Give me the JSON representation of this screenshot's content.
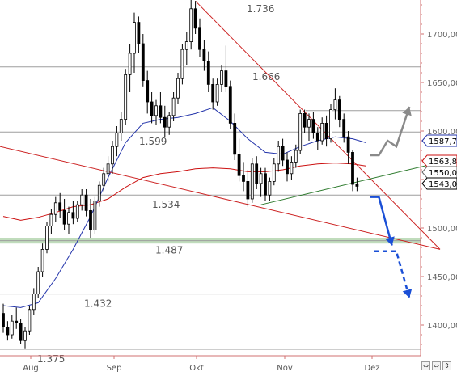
{
  "colors": {
    "background": "#ffffff",
    "grid": "#9e9e9e",
    "axis": "#d07070",
    "candle": "#000000",
    "ma_fast": "#2233aa",
    "ma_slow": "#cc1111",
    "trendline_red": "#cc2222",
    "trendline_green": "#2c7a2c",
    "support_zone": "#b9d8b5",
    "arrow_blue": "#1a4fd6",
    "arrow_gray": "#8a8a8a",
    "level_label": "#555555"
  },
  "chart_data": {
    "type": "candlestick",
    "x_ticks": [
      "Aug",
      "Sep",
      "Okt",
      "Nov",
      "Dez"
    ],
    "y_ticks": [
      "1700,00",
      "1650,00",
      "1600,00",
      "1550,00",
      "1500,00",
      "1450,00",
      "1400,00"
    ],
    "y_tick_values": [
      1700,
      1650,
      1600,
      1550,
      1500,
      1450,
      1400
    ],
    "ylim": [
      1365,
      1752
    ],
    "levels": [
      {
        "label": "1.736",
        "value": 1736
      },
      {
        "label": "1.666",
        "value": 1666
      },
      {
        "label": "1.599",
        "value": 1599
      },
      {
        "label": "1.534",
        "value": 1534
      },
      {
        "label": "1.487",
        "value": 1487
      },
      {
        "label": "1.432",
        "value": 1432
      },
      {
        "label": "1.375",
        "value": 1375
      }
    ],
    "extra_levels": [
      1621
    ],
    "price_tags": [
      {
        "label": "1587,7",
        "value": 1587.7,
        "color": "#2233aa"
      },
      {
        "label": "1563,8",
        "value": 1563.8,
        "color": "#cc1111"
      },
      {
        "label": "1550,0",
        "value": 1550,
        "color": "#666666"
      },
      {
        "label": "1543,0",
        "value": 1543,
        "color": "#000000"
      }
    ],
    "ohlc": [
      [
        1412,
        1422,
        1392,
        1398
      ],
      [
        1398,
        1404,
        1384,
        1390
      ],
      [
        1390,
        1410,
        1386,
        1404
      ],
      [
        1404,
        1418,
        1396,
        1402
      ],
      [
        1402,
        1406,
        1380,
        1384
      ],
      [
        1384,
        1398,
        1376,
        1394
      ],
      [
        1394,
        1420,
        1390,
        1416
      ],
      [
        1416,
        1438,
        1410,
        1432
      ],
      [
        1432,
        1460,
        1428,
        1455
      ],
      [
        1455,
        1484,
        1450,
        1478
      ],
      [
        1478,
        1506,
        1474,
        1502
      ],
      [
        1502,
        1520,
        1494,
        1514
      ],
      [
        1514,
        1532,
        1506,
        1526
      ],
      [
        1526,
        1536,
        1510,
        1518
      ],
      [
        1518,
        1530,
        1498,
        1504
      ],
      [
        1504,
        1522,
        1494,
        1516
      ],
      [
        1516,
        1528,
        1504,
        1510
      ],
      [
        1510,
        1528,
        1506,
        1524
      ],
      [
        1524,
        1540,
        1518,
        1534
      ],
      [
        1534,
        1540,
        1512,
        1518
      ],
      [
        1518,
        1530,
        1490,
        1498
      ],
      [
        1498,
        1532,
        1494,
        1528
      ],
      [
        1528,
        1548,
        1522,
        1544
      ],
      [
        1544,
        1562,
        1538,
        1556
      ],
      [
        1556,
        1574,
        1548,
        1566
      ],
      [
        1566,
        1590,
        1556,
        1584
      ],
      [
        1584,
        1605,
        1574,
        1598
      ],
      [
        1598,
        1620,
        1590,
        1612
      ],
      [
        1612,
        1664,
        1606,
        1658
      ],
      [
        1658,
        1690,
        1640,
        1680
      ],
      [
        1680,
        1722,
        1660,
        1712
      ],
      [
        1712,
        1718,
        1680,
        1690
      ],
      [
        1690,
        1700,
        1646,
        1652
      ],
      [
        1652,
        1662,
        1618,
        1630
      ],
      [
        1630,
        1640,
        1608,
        1616
      ],
      [
        1616,
        1632,
        1606,
        1626
      ],
      [
        1626,
        1640,
        1608,
        1614
      ],
      [
        1614,
        1626,
        1594,
        1604
      ],
      [
        1604,
        1620,
        1596,
        1616
      ],
      [
        1616,
        1640,
        1610,
        1634
      ],
      [
        1634,
        1660,
        1628,
        1654
      ],
      [
        1654,
        1690,
        1648,
        1684
      ],
      [
        1684,
        1702,
        1668,
        1692
      ],
      [
        1692,
        1736,
        1684,
        1726
      ],
      [
        1726,
        1734,
        1700,
        1706
      ],
      [
        1706,
        1716,
        1676,
        1684
      ],
      [
        1684,
        1694,
        1662,
        1672
      ],
      [
        1672,
        1682,
        1640,
        1648
      ],
      [
        1648,
        1654,
        1622,
        1630
      ],
      [
        1630,
        1654,
        1626,
        1648
      ],
      [
        1648,
        1668,
        1640,
        1662
      ],
      [
        1662,
        1688,
        1640,
        1646
      ],
      [
        1646,
        1652,
        1602,
        1608
      ],
      [
        1608,
        1618,
        1570,
        1576
      ],
      [
        1576,
        1592,
        1548,
        1554
      ],
      [
        1554,
        1568,
        1538,
        1548
      ],
      [
        1548,
        1560,
        1522,
        1530
      ],
      [
        1530,
        1572,
        1526,
        1566
      ],
      [
        1566,
        1574,
        1540,
        1546
      ],
      [
        1546,
        1562,
        1532,
        1556
      ],
      [
        1556,
        1562,
        1528,
        1534
      ],
      [
        1534,
        1552,
        1528,
        1548
      ],
      [
        1548,
        1572,
        1544,
        1566
      ],
      [
        1566,
        1590,
        1558,
        1584
      ],
      [
        1584,
        1592,
        1564,
        1570
      ],
      [
        1570,
        1578,
        1548,
        1556
      ],
      [
        1556,
        1574,
        1550,
        1568
      ],
      [
        1568,
        1586,
        1562,
        1580
      ],
      [
        1580,
        1622,
        1576,
        1618
      ],
      [
        1618,
        1622,
        1598,
        1604
      ],
      [
        1604,
        1618,
        1590,
        1612
      ],
      [
        1612,
        1620,
        1592,
        1598
      ],
      [
        1598,
        1604,
        1580,
        1590
      ],
      [
        1590,
        1614,
        1586,
        1608
      ],
      [
        1608,
        1616,
        1584,
        1592
      ],
      [
        1592,
        1628,
        1588,
        1622
      ],
      [
        1622,
        1644,
        1612,
        1632
      ],
      [
        1632,
        1636,
        1604,
        1612
      ],
      [
        1612,
        1618,
        1588,
        1594
      ],
      [
        1594,
        1600,
        1566,
        1578
      ],
      [
        1578,
        1580,
        1538,
        1545
      ],
      [
        1545,
        1552,
        1538,
        1543
      ]
    ],
    "ma_fast": [
      [
        0,
        1420
      ],
      [
        4,
        1418
      ],
      [
        8,
        1423
      ],
      [
        12,
        1448
      ],
      [
        16,
        1478
      ],
      [
        20,
        1512
      ],
      [
        24,
        1552
      ],
      [
        28,
        1588
      ],
      [
        32,
        1608
      ],
      [
        36,
        1612
      ],
      [
        40,
        1614
      ],
      [
        44,
        1618
      ],
      [
        48,
        1624
      ],
      [
        52,
        1610
      ],
      [
        56,
        1592
      ],
      [
        60,
        1578
      ],
      [
        64,
        1576
      ],
      [
        68,
        1584
      ],
      [
        72,
        1590
      ],
      [
        76,
        1594
      ],
      [
        80,
        1592
      ],
      [
        83,
        1588
      ]
    ],
    "ma_slow": [
      [
        0,
        1512
      ],
      [
        4,
        1508
      ],
      [
        8,
        1511
      ],
      [
        12,
        1516
      ],
      [
        16,
        1522
      ],
      [
        20,
        1524
      ],
      [
        24,
        1530
      ],
      [
        28,
        1542
      ],
      [
        32,
        1552
      ],
      [
        36,
        1556
      ],
      [
        40,
        1558
      ],
      [
        44,
        1561
      ],
      [
        48,
        1562
      ],
      [
        52,
        1561
      ],
      [
        56,
        1558
      ],
      [
        60,
        1558
      ],
      [
        64,
        1560
      ],
      [
        68,
        1564
      ],
      [
        72,
        1566
      ],
      [
        76,
        1567
      ],
      [
        80,
        1566
      ],
      [
        83,
        1564
      ]
    ],
    "trendlines": [
      {
        "name": "resistance",
        "from": [
          44,
          1734
        ],
        "to": [
          100,
          1478
        ],
        "color": "#cc2222"
      },
      {
        "name": "long-down",
        "from": [
          -14,
          1598
        ],
        "to": [
          100,
          1478
        ],
        "color": "#cc2222"
      },
      {
        "name": "uptrend",
        "from": [
          59,
          1524
        ],
        "to": [
          104,
          1572
        ],
        "color": "#2c7a2c"
      }
    ],
    "support_zone": [
      1484,
      1490
    ],
    "projection_gray": [
      [
        84,
        1575
      ],
      [
        86,
        1575
      ],
      [
        88,
        1590
      ],
      [
        90,
        1584
      ],
      [
        93,
        1625
      ]
    ],
    "projection_blue": [
      [
        84,
        1532
      ],
      [
        86,
        1532
      ],
      [
        89,
        1482
      ]
    ],
    "projection_blue_dashed": [
      [
        85,
        1476
      ],
      [
        90,
        1476
      ],
      [
        93,
        1428
      ]
    ]
  },
  "nav_buttons": [
    "⇔",
    "⇔",
    "⇕"
  ]
}
